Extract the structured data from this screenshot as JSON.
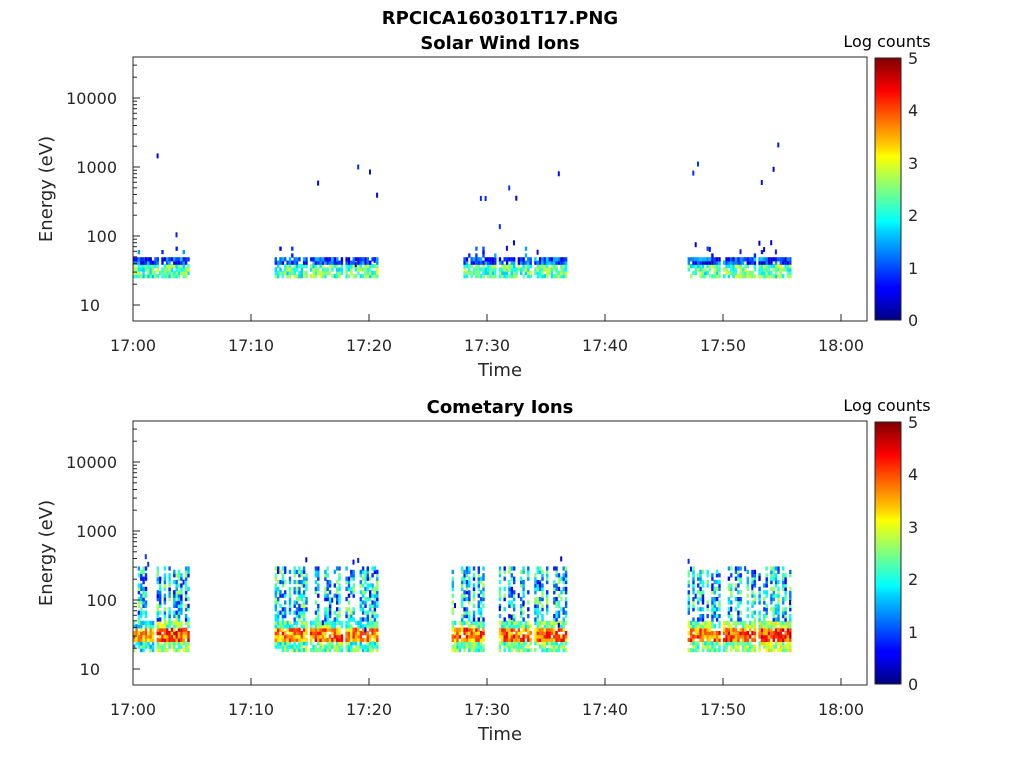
{
  "figure_title": "RPCICA160301T17.PNG",
  "colorbar_label": "Log counts",
  "colorbar_ticks": [
    "0",
    "1",
    "2",
    "3",
    "4",
    "5"
  ],
  "chart_data": [
    {
      "type": "heatmap",
      "title": "Solar Wind Ions",
      "xlabel": "Time",
      "ylabel": "Energy (eV)",
      "x_tick_labels": [
        "17:00",
        "17:10",
        "17:20",
        "17:30",
        "17:40",
        "17:50",
        "18:00"
      ],
      "y_tick_labels": [
        "10",
        "100",
        "1000",
        "10000"
      ],
      "y_scale": "log",
      "xlim": [
        "17:00",
        "18:02"
      ],
      "ylim": [
        5.5,
        45000
      ],
      "clim": [
        0,
        5
      ],
      "colormap": "jet",
      "grid": false,
      "bursts": [
        {
          "start": "17:00",
          "end": "17:04",
          "level": 1.5
        },
        {
          "start": "17:12",
          "end": "17:14",
          "level": 1.5
        },
        {
          "start": "17:15",
          "end": "17:17",
          "level": 1.5
        },
        {
          "start": "17:18",
          "end": "17:20",
          "level": 1.6
        },
        {
          "start": "17:28",
          "end": "17:30",
          "level": 1.5
        },
        {
          "start": "17:31",
          "end": "17:33",
          "level": 1.5
        },
        {
          "start": "17:34",
          "end": "17:36",
          "level": 1.6
        },
        {
          "start": "17:47",
          "end": "17:49",
          "level": 1.5
        },
        {
          "start": "17:50",
          "end": "17:52",
          "level": 1.6
        },
        {
          "start": "17:53",
          "end": "17:55",
          "level": 1.5
        }
      ]
    },
    {
      "type": "heatmap",
      "title": "Cometary Ions",
      "xlabel": "Time",
      "ylabel": "Energy (eV)",
      "x_tick_labels": [
        "17:00",
        "17:10",
        "17:20",
        "17:30",
        "17:40",
        "17:50",
        "18:00"
      ],
      "y_tick_labels": [
        "10",
        "100",
        "1000",
        "10000"
      ],
      "y_scale": "log",
      "xlim": [
        "17:00",
        "18:02"
      ],
      "ylim": [
        5.5,
        45000
      ],
      "clim": [
        0,
        5
      ],
      "colormap": "jet",
      "grid": false,
      "bursts": [
        {
          "start": "17:00",
          "end": "17:01",
          "level": 2.6
        },
        {
          "start": "17:02",
          "end": "17:04",
          "level": 3.1
        },
        {
          "start": "17:12",
          "end": "17:14",
          "level": 2.9
        },
        {
          "start": "17:15",
          "end": "17:17",
          "level": 3.0
        },
        {
          "start": "17:18",
          "end": "17:20",
          "level": 2.8
        },
        {
          "start": "17:27",
          "end": "17:29",
          "level": 3.0
        },
        {
          "start": "17:31",
          "end": "17:33",
          "level": 3.0
        },
        {
          "start": "17:34",
          "end": "17:36",
          "level": 3.0
        },
        {
          "start": "17:47",
          "end": "17:49",
          "level": 3.0
        },
        {
          "start": "17:50",
          "end": "17:52",
          "level": 3.2
        },
        {
          "start": "17:53",
          "end": "17:55",
          "level": 3.3
        }
      ]
    }
  ]
}
